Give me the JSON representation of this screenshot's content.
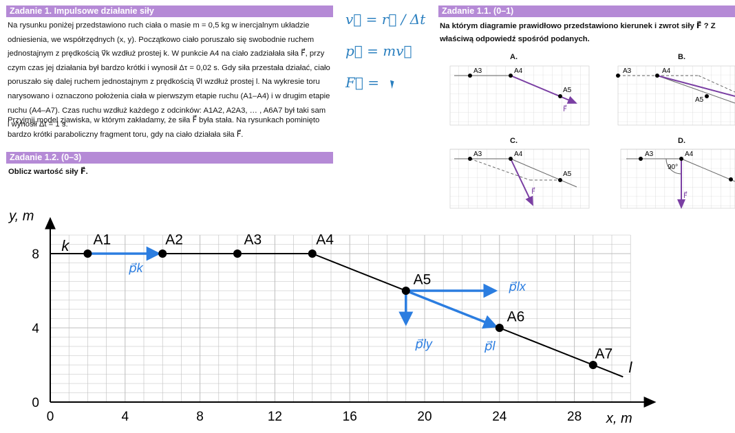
{
  "task1": {
    "title": "Zadanie 1. Impulsowe działanie siły",
    "paragraph1": [
      "Na rysunku poniżej przedstawiono ruch ciała o masie m = 0,5 kg w inercjalnym układzie",
      "odniesienia, we współrzędnych (x, y). Początkowo ciało poruszało się swobodnie ruchem",
      "jednostajnym z prędkością v⃗k wzdłuż prostej k. W punkcie A4 na ciało zadziałała siła F⃗, przy",
      "czym czas jej działania był bardzo krótki i wynosił Δτ = 0,02 s. Gdy siła przestała działać, ciało",
      "poruszało się dalej ruchem jednostajnym z prędkością v⃗l wzdłuż prostej l. Na wykresie toru",
      "narysowano i oznaczono położenia ciała w pierwszym etapie ruchu (A1–A4) i w drugim etapie",
      "ruchu (A4–A7). Czas ruchu wzdłuż każdego z odcinków: A1A2, A2A3, … , A6A7 był taki sam",
      "i wynosił Δt = 1 s."
    ],
    "paragraph2": [
      "Przyjmij model zjawiska, w którym zakładamy, że siła F⃗ była stała. Na rysunkach pominięto",
      "bardzo krótki paraboliczny fragment toru, gdy na ciało działała siła F⃗."
    ]
  },
  "task12": {
    "title": "Zadanie 1.2. (0–3)",
    "question": "Oblicz wartość siły F⃗."
  },
  "task11": {
    "title": "Zadanie 1.1. (0–1)",
    "question_line1": "Na którym diagramie prawidłowo przedstawiono kierunek i zwrot siły F⃗ ? Z",
    "question_line2": "właściwą odpowiedź spośród podanych.",
    "options": [
      {
        "letter": "A.",
        "labels": [
          "A3",
          "A4",
          "A5",
          "F⃗"
        ]
      },
      {
        "letter": "B.",
        "labels": [
          "A3",
          "A4",
          "A5"
        ]
      },
      {
        "letter": "C.",
        "labels": [
          "A3",
          "A4",
          "A5",
          "F⃗"
        ]
      },
      {
        "letter": "D.",
        "labels": [
          "A3",
          "A4",
          "90°",
          "F⃗"
        ]
      }
    ]
  },
  "notes": {
    "line1": "v⃗ = r⃗ / Δt",
    "line2": "p⃗ = mv⃗",
    "line3": "F⃗ ="
  },
  "chart_data": {
    "type": "scatter",
    "title": "",
    "xlabel": "x, m",
    "ylabel": "y, m",
    "xlim": [
      0,
      32
    ],
    "ylim": [
      0,
      9.5
    ],
    "x_ticks": [
      "0",
      "4",
      "8",
      "12",
      "16",
      "20",
      "24",
      "28"
    ],
    "y_ticks": [
      "0",
      "4",
      "8"
    ],
    "grid": true,
    "line_labels": [
      "k",
      "l"
    ],
    "points": [
      {
        "label": "A1",
        "x": 2,
        "y": 8
      },
      {
        "label": "A2",
        "x": 6,
        "y": 8
      },
      {
        "label": "A3",
        "x": 10,
        "y": 8
      },
      {
        "label": "A4",
        "x": 14,
        "y": 8
      },
      {
        "label": "A5",
        "x": 19,
        "y": 6
      },
      {
        "label": "A6",
        "x": 24,
        "y": 4
      },
      {
        "label": "A7",
        "x": 29,
        "y": 2
      }
    ],
    "vectors": [
      {
        "label": "p⃗k",
        "from": [
          2,
          8
        ],
        "to": [
          6,
          8
        ]
      },
      {
        "label": "p⃗lx",
        "from": [
          19,
          6
        ],
        "to": [
          24,
          6
        ]
      },
      {
        "label": "p⃗ly",
        "from": [
          19,
          6
        ],
        "to": [
          19,
          4
        ]
      },
      {
        "label": "p⃗l",
        "from": [
          19,
          6
        ],
        "to": [
          24,
          4
        ]
      }
    ],
    "colors": {
      "vector": "#2b7de0",
      "trajectory": "#000000",
      "grid": "#bdbdbd"
    }
  }
}
